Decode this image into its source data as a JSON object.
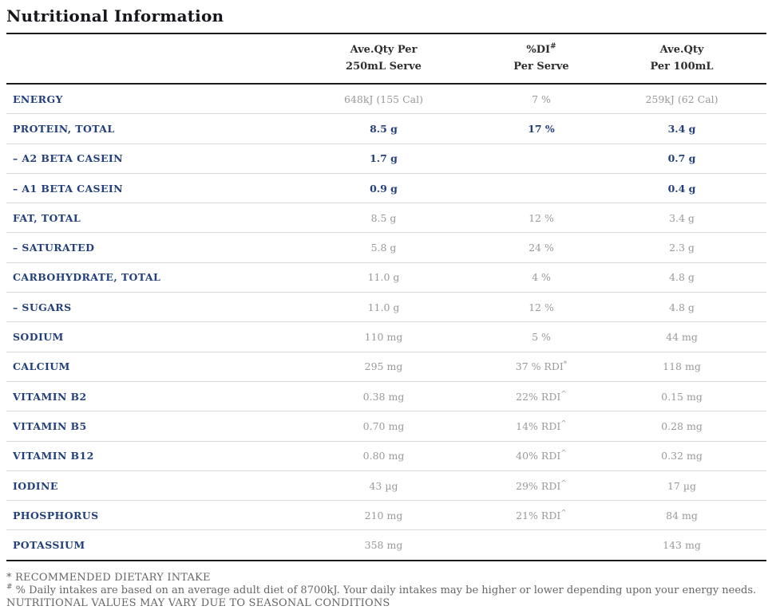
{
  "title": "Nutritional Information",
  "colors": {
    "label_navy": "#23407c",
    "value_gray": "#9a9a9a",
    "header_dark": "#2e2e2e",
    "rule_dark": "#1b1b1b",
    "rule_light": "#d9dade",
    "footnote_gray": "#666666"
  },
  "table": {
    "headers": {
      "serve_line1": "Ave.Qty Per",
      "serve_line2": "250mL Serve",
      "di_line1": "%DI",
      "di_sup": "#",
      "di_line2": "Per Serve",
      "per100_line1": "Ave.Qty",
      "per100_line2": "Per 100mL"
    },
    "rows": [
      {
        "label": "ENERGY",
        "serve": "648kJ (155 Cal)",
        "di": "7 %",
        "di_sup": "",
        "per100": "259kJ (62 Cal)",
        "emphasis": false
      },
      {
        "label": "PROTEIN, TOTAL",
        "serve": "8.5 g",
        "di": "17 %",
        "di_sup": "",
        "per100": "3.4 g",
        "emphasis": true
      },
      {
        "label": "– A2 BETA CASEIN",
        "serve": "1.7 g",
        "di": "",
        "di_sup": "",
        "per100": "0.7 g",
        "emphasis": true
      },
      {
        "label": "– A1 BETA CASEIN",
        "serve": "0.9 g",
        "di": "",
        "di_sup": "",
        "per100": "0.4 g",
        "emphasis": true
      },
      {
        "label": "FAT, TOTAL",
        "serve": "8.5 g",
        "di": "12 %",
        "di_sup": "",
        "per100": "3.4 g",
        "emphasis": false
      },
      {
        "label": "– SATURATED",
        "serve": "5.8 g",
        "di": "24 %",
        "di_sup": "",
        "per100": "2.3 g",
        "emphasis": false
      },
      {
        "label": "CARBOHYDRATE, TOTAL",
        "serve": "11.0 g",
        "di": "4 %",
        "di_sup": "",
        "per100": "4.8 g",
        "emphasis": false
      },
      {
        "label": "– SUGARS",
        "serve": "11.0 g",
        "di": "12 %",
        "di_sup": "",
        "per100": "4.8 g",
        "emphasis": false
      },
      {
        "label": "SODIUM",
        "serve": "110 mg",
        "di": "5 %",
        "di_sup": "",
        "per100": "44 mg",
        "emphasis": false
      },
      {
        "label": "CALCIUM",
        "serve": "295 mg",
        "di": "37 % RDI",
        "di_sup": "*",
        "per100": "118 mg",
        "emphasis": false
      },
      {
        "label": "VITAMIN B2",
        "serve": "0.38 mg",
        "di": "22% RDI",
        "di_sup": "^",
        "per100": "0.15 mg",
        "emphasis": false
      },
      {
        "label": "VITAMIN B5",
        "serve": "0.70 mg",
        "di": "14% RDI",
        "di_sup": "^",
        "per100": "0.28 mg",
        "emphasis": false
      },
      {
        "label": "VITAMIN B12",
        "serve": "0.80 mg",
        "di": "40% RDI",
        "di_sup": "^",
        "per100": "0.32 mg",
        "emphasis": false
      },
      {
        "label": "IODINE",
        "serve": "43 µg",
        "di": "29% RDI",
        "di_sup": "^",
        "per100": "17 µg",
        "emphasis": false
      },
      {
        "label": "PHOSPHORUS",
        "serve": "210 mg",
        "di": "21% RDI",
        "di_sup": "^",
        "per100": "84 mg",
        "emphasis": false
      },
      {
        "label": "POTASSIUM",
        "serve": "358 mg",
        "di": "",
        "di_sup": "",
        "per100": "143 mg",
        "emphasis": false
      }
    ]
  },
  "footnotes": {
    "line1": "* RECOMMENDED DIETARY INTAKE",
    "line2_sup": "#",
    "line2": " % Daily intakes are based on an average adult diet of 8700kJ. Your daily intakes may be higher or lower depending upon your energy needs.",
    "line3": "NUTRITIONAL VALUES MAY VARY DUE TO SEASONAL CONDITIONS"
  }
}
